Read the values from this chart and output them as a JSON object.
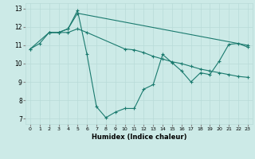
{
  "title": "",
  "xlabel": "Humidex (Indice chaleur)",
  "ylabel": "",
  "background_color": "#cceae7",
  "line_color": "#1a7a6e",
  "xlim": [
    -0.5,
    23.5
  ],
  "ylim": [
    6.7,
    13.3
  ],
  "yticks": [
    7,
    8,
    9,
    10,
    11,
    12,
    13
  ],
  "xticks": [
    0,
    1,
    2,
    3,
    4,
    5,
    6,
    7,
    8,
    9,
    10,
    11,
    12,
    13,
    14,
    15,
    16,
    17,
    18,
    19,
    20,
    21,
    22,
    23
  ],
  "series": [
    {
      "x": [
        0,
        1,
        2,
        3,
        4,
        5,
        6,
        10,
        11,
        12,
        13,
        14,
        15,
        16,
        17,
        18,
        19,
        20,
        21,
        22,
        23
      ],
      "y": [
        10.8,
        11.1,
        11.7,
        11.7,
        11.7,
        11.9,
        11.7,
        10.8,
        10.75,
        10.6,
        10.4,
        10.25,
        10.1,
        10.0,
        9.85,
        9.7,
        9.6,
        9.5,
        9.4,
        9.3,
        9.25
      ]
    },
    {
      "x": [
        0,
        2,
        3,
        4,
        5,
        23
      ],
      "y": [
        10.8,
        11.7,
        11.7,
        11.9,
        12.75,
        11.0
      ]
    },
    {
      "x": [
        2,
        3,
        4,
        5,
        6,
        7,
        8,
        9,
        10,
        11,
        12,
        13,
        14,
        15,
        16,
        17,
        18,
        19,
        20,
        21,
        22,
        23
      ],
      "y": [
        11.7,
        11.7,
        11.9,
        12.9,
        10.5,
        7.65,
        7.05,
        7.35,
        7.55,
        7.55,
        8.6,
        8.85,
        10.5,
        10.05,
        9.6,
        9.0,
        9.5,
        9.4,
        10.15,
        11.05,
        11.1,
        10.9
      ]
    }
  ]
}
